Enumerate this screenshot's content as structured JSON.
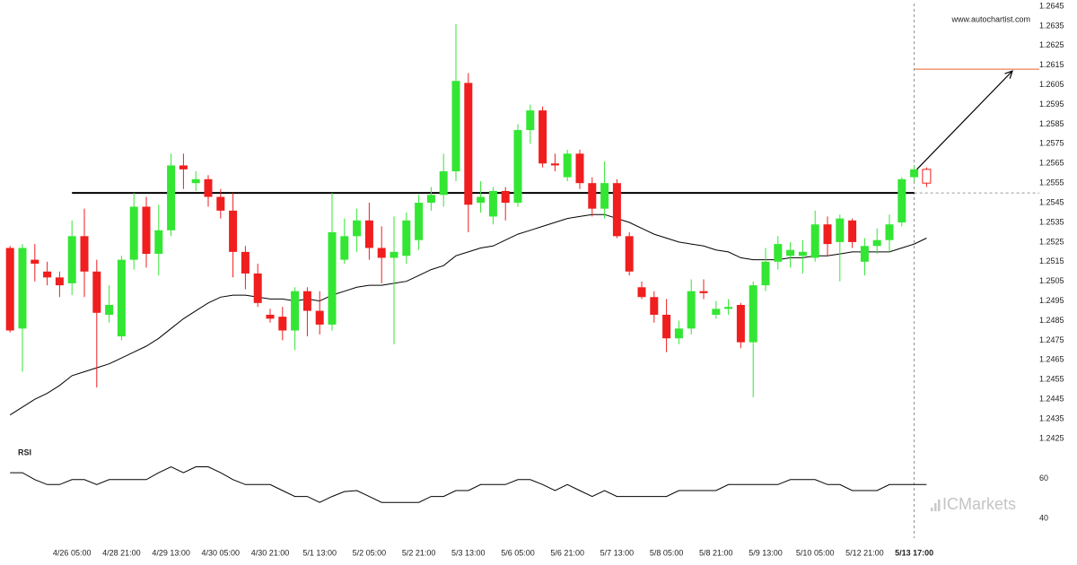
{
  "chart_data": [
    {
      "type": "candlestick",
      "watermark": "www.autochartist.com",
      "categories": [
        null,
        null,
        null,
        null,
        null,
        "4/26 05:00",
        null,
        null,
        null,
        "4/28 21:00",
        null,
        null,
        null,
        "4/29 13:00",
        null,
        null,
        null,
        "4/30 05:00",
        null,
        null,
        null,
        "4/30 21:00",
        null,
        null,
        null,
        "5/1 13:00",
        null,
        null,
        null,
        "5/2 05:00",
        null,
        null,
        null,
        "5/2 21:00",
        null,
        null,
        null,
        "5/3 13:00",
        null,
        null,
        null,
        "5/6 05:00",
        null,
        null,
        null,
        "5/6 21:00",
        null,
        null,
        null,
        "5/7 13:00",
        null,
        null,
        null,
        "5/8 05:00",
        null,
        null,
        null,
        "5/8 21:00",
        null,
        null,
        null,
        "5/9 13:00",
        null,
        null,
        null,
        "5/10 05:00",
        null,
        null,
        null,
        "5/12 21:00",
        null,
        null,
        null,
        "5/13 17:00",
        null
      ],
      "open": [
        1.2522,
        1.2481,
        1.2516,
        1.251,
        1.2507,
        1.2504,
        1.2528,
        1.251,
        1.2488,
        1.2477,
        1.2516,
        1.2543,
        1.2519,
        1.2531,
        1.2564,
        1.2555,
        1.2557,
        1.2548,
        1.2541,
        1.252,
        1.2509,
        1.2488,
        1.2487,
        1.248,
        1.25,
        1.249,
        1.2483,
        1.2516,
        1.2528,
        1.2536,
        1.2522,
        1.2517,
        1.2518,
        1.2526,
        1.2545,
        1.2549,
        1.2561,
        1.2606,
        1.2545,
        1.2538,
        1.2551,
        1.2545,
        1.2582,
        1.2592,
        1.2565,
        1.2558,
        1.257,
        1.2555,
        1.2542,
        1.2555,
        1.2528,
        1.2502,
        1.2497,
        1.2488,
        1.2476,
        1.2481,
        1.25,
        1.2488,
        1.2491,
        1.2493,
        1.2474,
        1.2503,
        1.2515,
        1.2518,
        1.2518,
        1.2517,
        1.2534,
        1.2525,
        1.2536,
        1.2515,
        1.2523,
        1.2526,
        1.2535,
        1.2558,
        1.2562
      ],
      "high": [
        1.2523,
        1.2524,
        1.2524,
        1.2515,
        1.251,
        1.2536,
        1.2542,
        1.2516,
        1.2503,
        1.2518,
        1.255,
        1.2548,
        1.2544,
        1.257,
        1.257,
        1.2561,
        1.2559,
        1.2552,
        1.255,
        1.2523,
        1.2514,
        1.2491,
        1.2492,
        1.2502,
        1.2502,
        1.25,
        1.255,
        1.2537,
        1.2542,
        1.2545,
        1.2533,
        1.2538,
        1.254,
        1.2549,
        1.2553,
        1.257,
        1.2636,
        1.2611,
        1.2556,
        1.2553,
        1.2553,
        1.2585,
        1.2595,
        1.2594,
        1.257,
        1.2572,
        1.2572,
        1.2558,
        1.2566,
        1.2557,
        1.253,
        1.2505,
        1.25,
        1.2496,
        1.2485,
        1.2506,
        1.2506,
        1.2495,
        1.2496,
        1.2494,
        1.2505,
        1.2522,
        1.2528,
        1.2525,
        1.2526,
        1.2541,
        1.2538,
        1.2539,
        1.2537,
        1.2527,
        1.2532,
        1.2539,
        1.2558,
        1.2564,
        1.2563
      ],
      "low": [
        1.2479,
        1.2459,
        1.2505,
        1.2503,
        1.2497,
        1.2498,
        1.2497,
        1.2451,
        1.2484,
        1.2475,
        1.2511,
        1.2512,
        1.2508,
        1.2528,
        1.2552,
        1.2551,
        1.2543,
        1.2537,
        1.2507,
        1.2501,
        1.2492,
        1.2484,
        1.2475,
        1.247,
        1.2477,
        1.2478,
        1.248,
        1.2514,
        1.252,
        1.2516,
        1.2504,
        1.2473,
        1.2514,
        1.2521,
        1.2541,
        1.2543,
        1.2556,
        1.253,
        1.254,
        1.2534,
        1.2536,
        1.2543,
        1.2575,
        1.2563,
        1.2561,
        1.2556,
        1.2552,
        1.2538,
        1.2537,
        1.2527,
        1.2508,
        1.2496,
        1.2484,
        1.2469,
        1.2473,
        1.2478,
        1.2496,
        1.2486,
        1.2488,
        1.2471,
        1.2446,
        1.25,
        1.2511,
        1.2512,
        1.2509,
        1.2515,
        1.2518,
        1.2505,
        1.2522,
        1.2508,
        1.2519,
        1.252,
        1.2533,
        1.2556,
        1.2553
      ],
      "close": [
        1.248,
        1.2522,
        1.2514,
        1.2507,
        1.2503,
        1.2528,
        1.251,
        1.2489,
        1.2493,
        1.2516,
        1.2543,
        1.2519,
        1.2531,
        1.2564,
        1.2562,
        1.2557,
        1.2548,
        1.2541,
        1.252,
        1.2509,
        1.2494,
        1.2486,
        1.248,
        1.25,
        1.249,
        1.2483,
        1.253,
        1.2528,
        1.2536,
        1.2522,
        1.2517,
        1.252,
        1.2536,
        1.2545,
        1.2549,
        1.2561,
        1.2607,
        1.2544,
        1.2548,
        1.2551,
        1.2545,
        1.2582,
        1.2592,
        1.2565,
        1.2564,
        1.257,
        1.2555,
        1.2542,
        1.2555,
        1.2528,
        1.251,
        1.2497,
        1.2488,
        1.2476,
        1.2481,
        1.25,
        1.2499,
        1.2491,
        1.2492,
        1.2474,
        1.2503,
        1.2515,
        1.2524,
        1.2521,
        1.252,
        1.2534,
        1.2524,
        1.2537,
        1.2525,
        1.2523,
        1.2526,
        1.2534,
        1.2557,
        1.2562,
        1.2555
      ],
      "up_color": "#33e633",
      "down_color": "#f01e1e",
      "ma": {
        "color": "#000000",
        "values": [
          1.2437,
          1.2441,
          1.2445,
          1.2448,
          1.2452,
          1.2457,
          1.2459,
          1.2461,
          1.2463,
          1.2466,
          1.2469,
          1.2472,
          1.2476,
          1.2481,
          1.2486,
          1.249,
          1.2494,
          1.2497,
          1.2498,
          1.2498,
          1.2497,
          1.2496,
          1.2496,
          1.2495,
          1.2496,
          1.2495,
          1.2498,
          1.25,
          1.2502,
          1.2503,
          1.2503,
          1.2504,
          1.2505,
          1.2508,
          1.2511,
          1.2513,
          1.2518,
          1.252,
          1.2522,
          1.2523,
          1.2526,
          1.2529,
          1.2531,
          1.2533,
          1.2535,
          1.2537,
          1.2538,
          1.2539,
          1.2539,
          1.2537,
          1.2535,
          1.2532,
          1.2529,
          1.2527,
          1.2525,
          1.2524,
          1.2523,
          1.2521,
          1.252,
          1.2517,
          1.2516,
          1.2516,
          1.2516,
          1.2517,
          1.2517,
          1.2518,
          1.2518,
          1.2519,
          1.252,
          1.252,
          1.252,
          1.252,
          1.2522,
          1.2524,
          1.2527
        ]
      },
      "support_level": 1.255,
      "target_level": 1.2613,
      "target_color": "#e8622c",
      "ylim": [
        1.2425,
        1.2645
      ],
      "yticks": [
        1.2425,
        1.2435,
        1.2445,
        1.2455,
        1.2465,
        1.2475,
        1.2485,
        1.2495,
        1.2505,
        1.2515,
        1.2525,
        1.2535,
        1.2545,
        1.2555,
        1.2565,
        1.2575,
        1.2585,
        1.2595,
        1.2605,
        1.2615,
        1.2625,
        1.2635,
        1.2645
      ],
      "grid": false
    },
    {
      "type": "line",
      "title": "RSI",
      "brand": "ICMarkets",
      "color": "#000000",
      "values": [
        63,
        63,
        59.5,
        57,
        57,
        59.5,
        59.5,
        57,
        59.5,
        59.5,
        59.5,
        59.5,
        63,
        66,
        63,
        66,
        66,
        63,
        59.5,
        57,
        57,
        57,
        54,
        51,
        51,
        48,
        51,
        53.5,
        54,
        51,
        48,
        48,
        48,
        48,
        51,
        51,
        54,
        54,
        57,
        57,
        57,
        59.5,
        59.5,
        57,
        54,
        57,
        54,
        51,
        54,
        51,
        51,
        51,
        51,
        51,
        54,
        54,
        54,
        54,
        57,
        57,
        57,
        57,
        57,
        59.5,
        59.5,
        59.5,
        57,
        57,
        54,
        54,
        54,
        57,
        57,
        57,
        57
      ],
      "ylim": [
        30,
        73
      ],
      "yticks": [
        40,
        60
      ],
      "grid": false
    }
  ]
}
